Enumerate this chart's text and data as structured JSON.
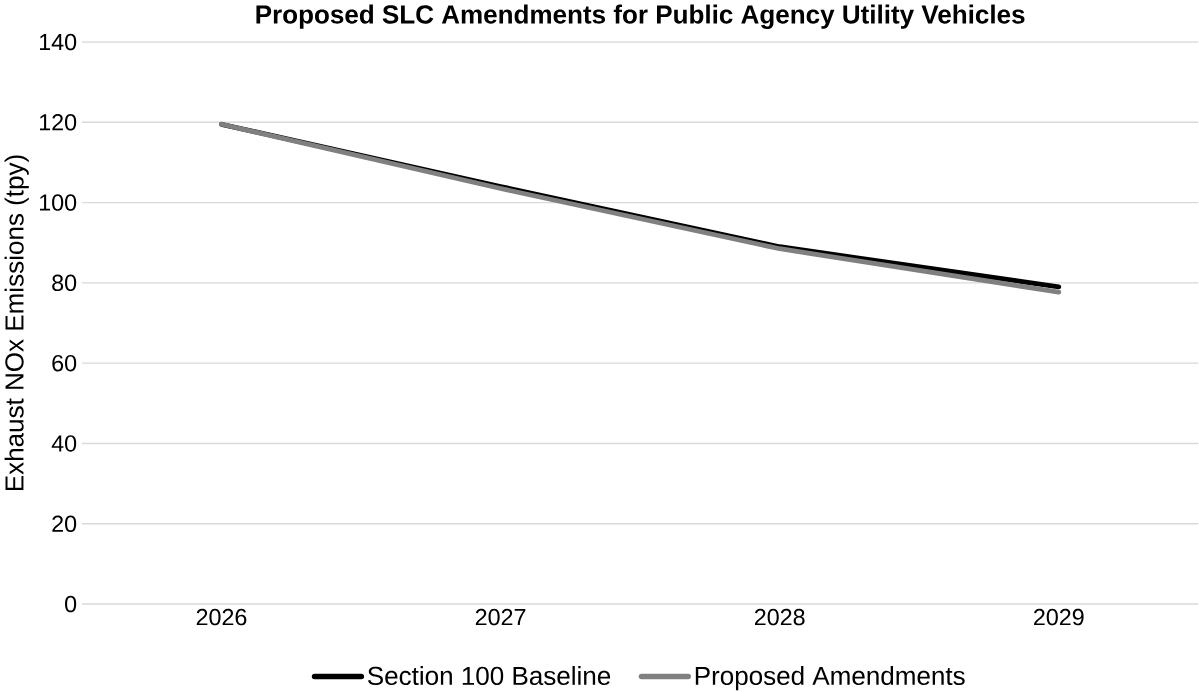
{
  "chart_data": {
    "type": "line",
    "title": "Proposed SLC Amendments for Public Agency Utility Vehicles",
    "ylabel": "Exhaust  NOx Emissions (tpy)",
    "categories": [
      "2026",
      "2027",
      "2028",
      "2029"
    ],
    "series": [
      {
        "name": "Section 100 Baseline",
        "color": "#000000",
        "values": [
          119.5,
          104,
          89,
          79
        ]
      },
      {
        "name": "Proposed Amendments",
        "color": "#808080",
        "values": [
          119.5,
          103.5,
          88.5,
          77.7
        ]
      }
    ],
    "ylim": [
      0,
      140
    ],
    "yticks": [
      0,
      20,
      40,
      60,
      80,
      100,
      120,
      140
    ],
    "grid": "y",
    "legend": "bottom",
    "marker": "none",
    "line_style": "solid"
  }
}
